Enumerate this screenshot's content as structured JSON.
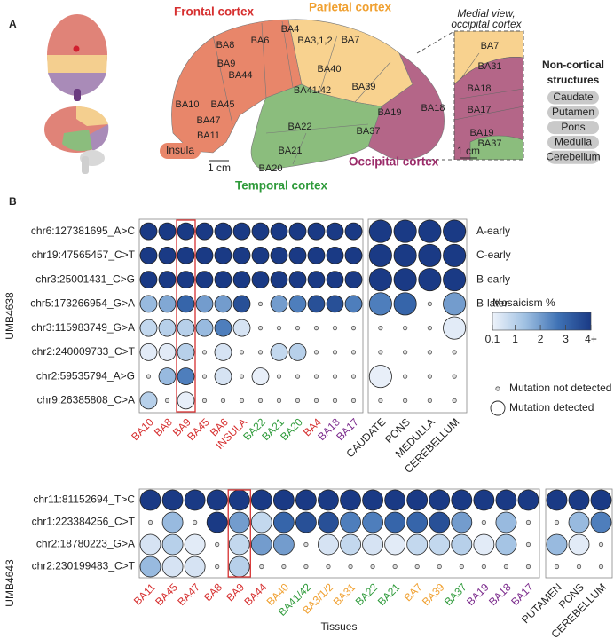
{
  "panel_a": {
    "label": "A",
    "lobes": [
      "Frontal cortex",
      "Parietal cortex",
      "Occipital cortex",
      "Temporal cortex"
    ],
    "insula": "Insula",
    "areas": [
      "BA8",
      "BA6",
      "BA4",
      "BA3,1,2",
      "BA7",
      "BA9",
      "BA44",
      "BA40",
      "BA41/42",
      "BA39",
      "BA10",
      "BA45",
      "BA47",
      "BA11",
      "BA22",
      "BA21",
      "BA37",
      "BA19",
      "BA18",
      "BA20"
    ],
    "scale": "1 cm",
    "inset_title": [
      "Medial view,",
      "occipital cortex"
    ],
    "inset_areas": [
      "BA7",
      "BA31",
      "BA18",
      "BA17",
      "BA19",
      "BA37"
    ],
    "inset_scale": "1 cm",
    "noncortical_title": [
      "Non-cortical",
      "structures"
    ],
    "noncortical": [
      "Caudate",
      "Putamen",
      "Pons",
      "Medulla",
      "Cerebellum"
    ]
  },
  "panel_b": {
    "label": "B",
    "xlabel": "Tissues",
    "colorbar": {
      "title": "Mosaicism %",
      "lim": [
        0.1,
        4
      ],
      "ticks": [
        0.1,
        1,
        2,
        3,
        {
          "value": 4,
          "label": "4+"
        }
      ],
      "colors": [
        "#eef3fb",
        "#9fc0e2",
        "#3f72b5",
        "#1a3a85"
      ]
    },
    "legend": [
      "Mutation not detected",
      "Mutation detected"
    ]
  },
  "chart_data": [
    {
      "type": "dotplot",
      "ylabel": "UMB4638",
      "rows": [
        "chr6:127381695_A>C",
        "chr19:47565457_C>T",
        "chr3:25001431_C>G",
        "chr5:173266954_G>A",
        "chr3:115983749_G>A",
        "chr2:240009733_C>T",
        "chr2:59535794_A>G",
        "chr9:26385808_C>A"
      ],
      "row_annotations": [
        "A-early",
        "C-early",
        "B-early",
        "B-later",
        null,
        null,
        null,
        null
      ],
      "groups": [
        {
          "categories": [
            "BA10",
            "BA8",
            "BA9",
            "BA45",
            "BA6",
            "INSULA",
            "BA22",
            "BA21",
            "BA20",
            "BA4",
            "BA18",
            "BA17"
          ],
          "category_colors": [
            "#d62f2f",
            "#d62f2f",
            "#d62f2f",
            "#d62f2f",
            "#d62f2f",
            "#d62f2f",
            "#2e9a3a",
            "#2e9a3a",
            "#2e9a3a",
            "#d62f2f",
            "#7b2a8c",
            "#7b2a8c"
          ],
          "highlight": 2,
          "values": [
            [
              4,
              4,
              4,
              4,
              4,
              4,
              4,
              4,
              4,
              4,
              4,
              4
            ],
            [
              4,
              4,
              4,
              4,
              4,
              4,
              4,
              4,
              4,
              4,
              4,
              4
            ],
            [
              4,
              4,
              4,
              4,
              4,
              4,
              4,
              4,
              4,
              4,
              4,
              4
            ],
            [
              1.5,
              1.8,
              3,
              2,
              2,
              3.5,
              0,
              2,
              2.5,
              3.5,
              3.5,
              2.5
            ],
            [
              0.8,
              1,
              1,
              1.5,
              2.5,
              0.5,
              0,
              0,
              0,
              0,
              0,
              0
            ],
            [
              0.3,
              0.3,
              1,
              0,
              0.5,
              0,
              0,
              0.8,
              1,
              0,
              0,
              0
            ],
            [
              0,
              1.5,
              2.5,
              0,
              0.5,
              0,
              0.2,
              0,
              0,
              0,
              0,
              0
            ],
            [
              1,
              0,
              0.2,
              0,
              0,
              0,
              0,
              0,
              0,
              0,
              0,
              0
            ]
          ]
        },
        {
          "categories": [
            "CAUDATE",
            "PONS",
            "MEDULLA",
            "CEREBELLUM"
          ],
          "category_colors": [
            "#222222",
            "#222222",
            "#222222",
            "#222222"
          ],
          "values": [
            [
              4,
              4,
              4,
              4
            ],
            [
              4,
              4,
              4,
              4
            ],
            [
              4,
              4,
              4,
              4
            ],
            [
              2.5,
              3,
              0,
              2
            ],
            [
              0,
              0,
              0,
              0.3
            ],
            [
              0,
              0,
              0,
              0
            ],
            [
              0.2,
              0,
              0,
              0
            ],
            [
              0,
              0,
              0,
              0
            ]
          ]
        }
      ]
    },
    {
      "type": "dotplot",
      "ylabel": "UMB4643",
      "rows": [
        "chr11:81152694_T>C",
        "chr1:223384256_C>T",
        "chr2:18780223_G>A",
        "chr2:230199483_C>T"
      ],
      "groups": [
        {
          "categories": [
            "BA11",
            "BA45",
            "BA47",
            "BA8",
            "BA9",
            "BA44",
            "BA40",
            "BA41/42",
            "BA3/1/2",
            "BA31",
            "BA22",
            "BA21",
            "BA7",
            "BA39",
            "BA37",
            "BA19",
            "BA18",
            "BA17"
          ],
          "category_colors": [
            "#d62f2f",
            "#d62f2f",
            "#d62f2f",
            "#d62f2f",
            "#d62f2f",
            "#d62f2f",
            "#f0a030",
            "#2e9a3a",
            "#f0a030",
            "#f0a030",
            "#2e9a3a",
            "#2e9a3a",
            "#f0a030",
            "#f0a030",
            "#2e9a3a",
            "#7b2a8c",
            "#7b2a8c",
            "#7b2a8c"
          ],
          "highlight": 4,
          "values": [
            [
              4,
              4,
              4,
              4,
              4,
              4,
              4,
              4,
              4,
              4,
              4,
              4,
              4,
              4,
              4,
              4,
              4,
              4
            ],
            [
              0,
              1.5,
              0,
              4,
              2,
              0.8,
              3,
              3.5,
              3.5,
              2.5,
              2.5,
              3,
              3,
              3.5,
              2,
              0,
              1.5,
              0
            ],
            [
              0.5,
              1,
              0.3,
              0,
              0.8,
              2,
              2,
              0,
              0.5,
              0.8,
              0.5,
              0.3,
              0.8,
              0.8,
              1,
              0.3,
              1.3,
              0
            ],
            [
              1.5,
              0.5,
              0.5,
              0,
              1,
              0,
              0,
              0,
              0,
              0,
              0,
              0,
              0,
              0,
              0,
              0,
              0,
              0
            ]
          ]
        },
        {
          "categories": [
            "PUTAMEN",
            "PONS",
            "CEREBELLUM"
          ],
          "category_colors": [
            "#222222",
            "#222222",
            "#222222"
          ],
          "values": [
            [
              4,
              4,
              4
            ],
            [
              0,
              1.5,
              2.5
            ],
            [
              1.5,
              0.3,
              0
            ],
            [
              0,
              0,
              0
            ]
          ]
        }
      ]
    }
  ]
}
